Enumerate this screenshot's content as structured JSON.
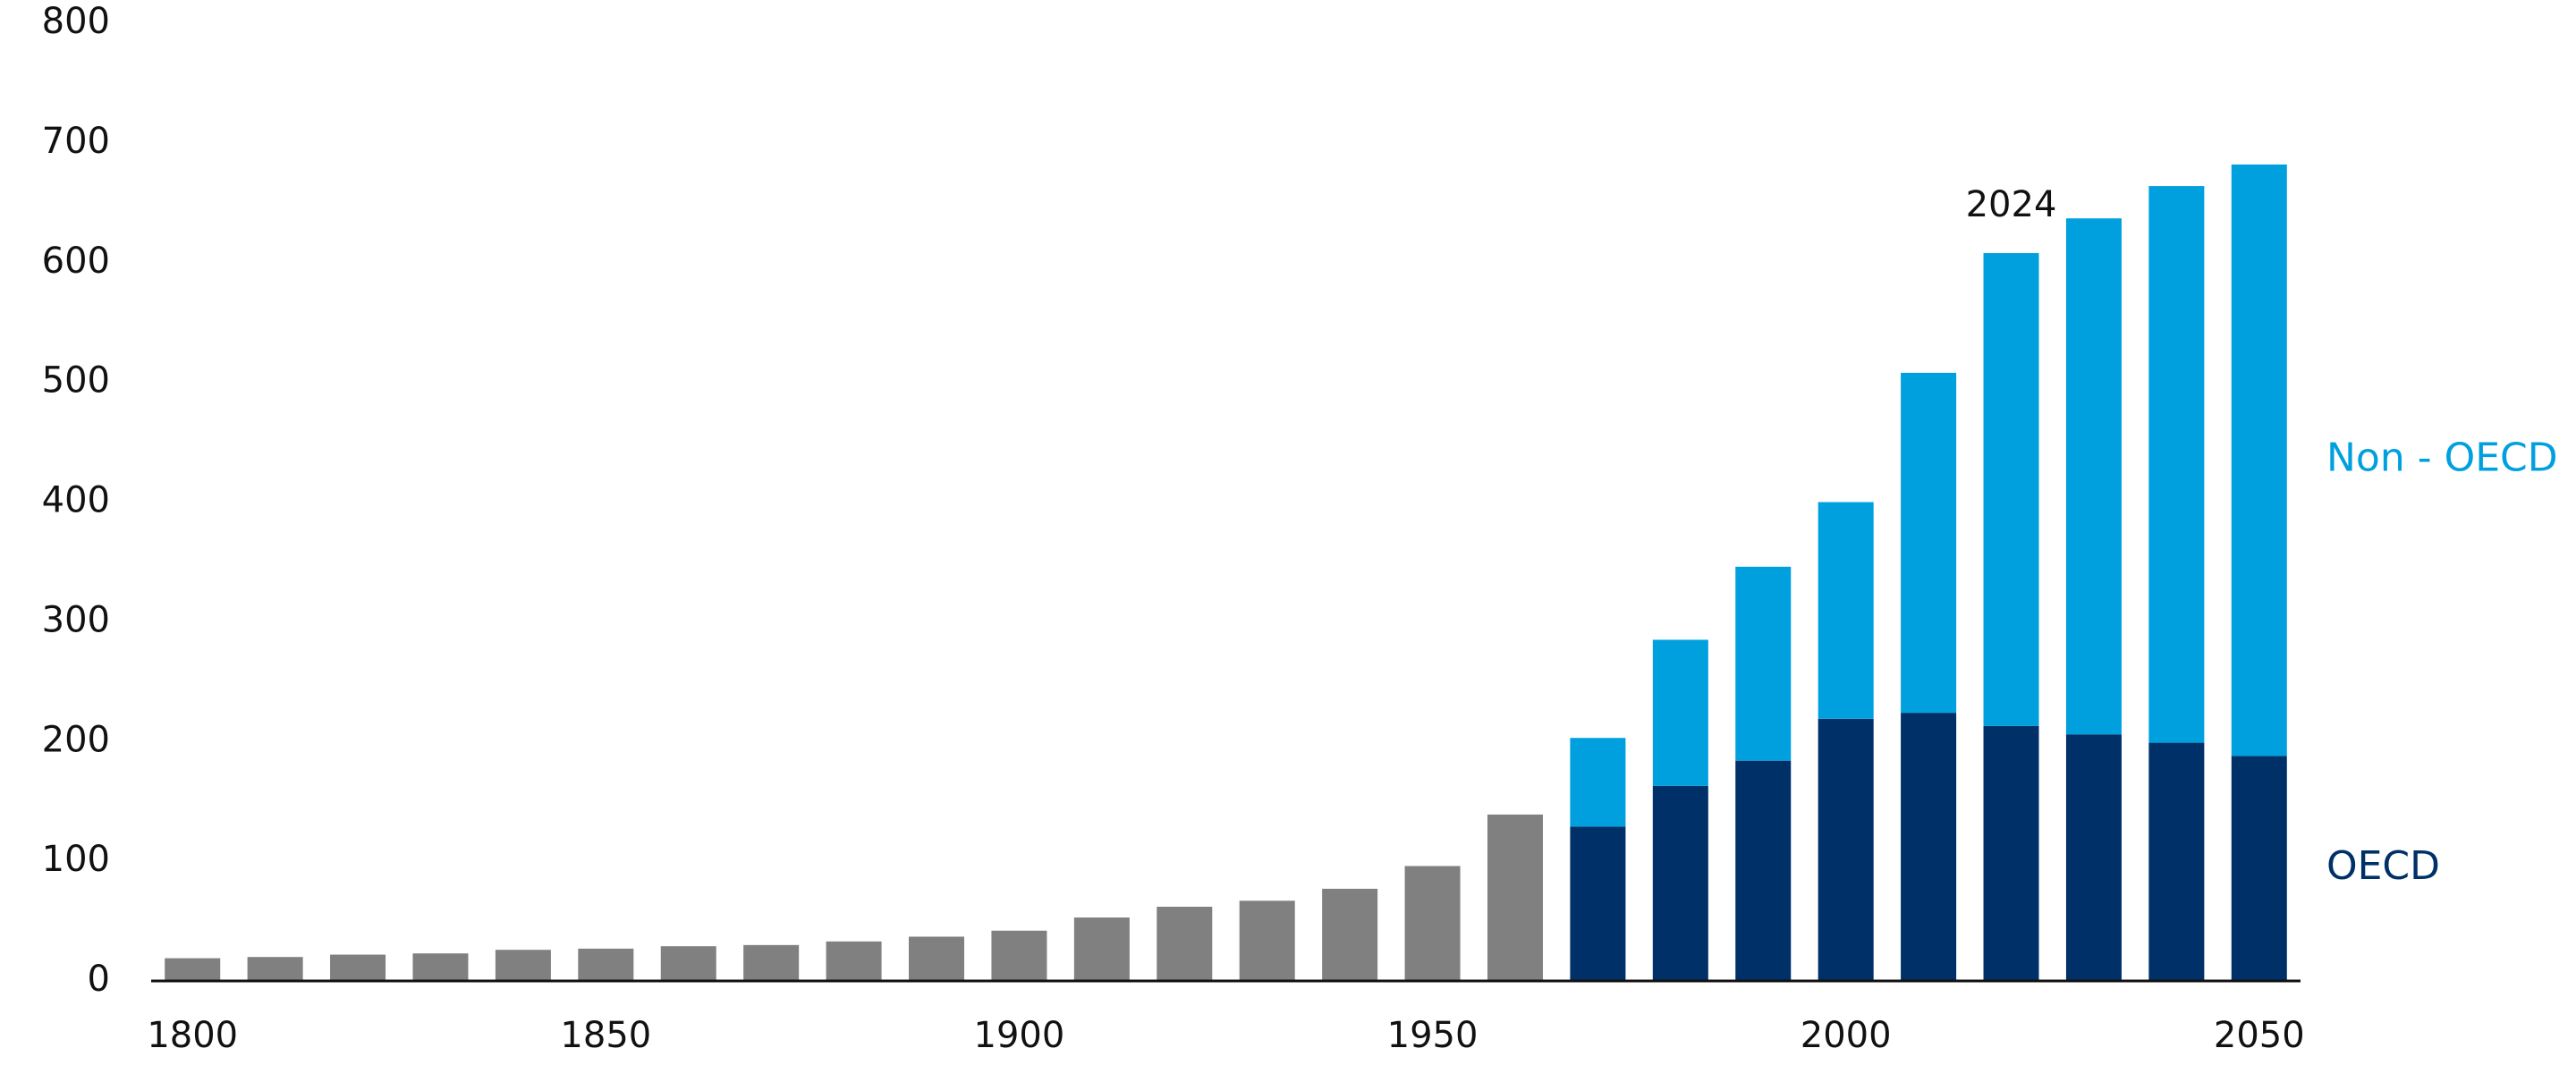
{
  "chart_data": {
    "type": "stacked-bar",
    "x": [
      1800,
      1810,
      1820,
      1830,
      1840,
      1850,
      1860,
      1870,
      1880,
      1890,
      1900,
      1910,
      1920,
      1930,
      1940,
      1950,
      1960,
      1970,
      1980,
      1990,
      2000,
      2010,
      2020,
      2030,
      2040,
      2050
    ],
    "series": [
      {
        "color": "#808080",
        "values": [
          19,
          20,
          22,
          23,
          26,
          27,
          29,
          30,
          33,
          37,
          42,
          53,
          62,
          67,
          77,
          96,
          139,
          null,
          null,
          null,
          null,
          null,
          null,
          null,
          null,
          null
        ]
      },
      {
        "name": "OECD",
        "color": "#003068",
        "values": [
          null,
          null,
          null,
          null,
          null,
          null,
          null,
          null,
          null,
          null,
          null,
          null,
          null,
          null,
          null,
          null,
          null,
          129,
          163,
          184,
          219,
          224,
          213,
          206,
          199,
          188
        ]
      },
      {
        "name": "Non - OECD",
        "color": "#00a0df",
        "values": [
          null,
          null,
          null,
          null,
          null,
          null,
          null,
          null,
          null,
          null,
          null,
          null,
          null,
          null,
          null,
          null,
          null,
          74,
          122,
          162,
          181,
          284,
          395,
          431,
          465,
          494
        ]
      }
    ],
    "annotation": "2024",
    "xlim": [
      1795,
      2055
    ],
    "xticks": [
      1800,
      1850,
      1900,
      1950,
      2000,
      2050
    ],
    "ylim": [
      0,
      800
    ],
    "yticks": [
      0,
      100,
      200,
      300,
      400,
      500,
      600,
      700,
      800
    ]
  }
}
